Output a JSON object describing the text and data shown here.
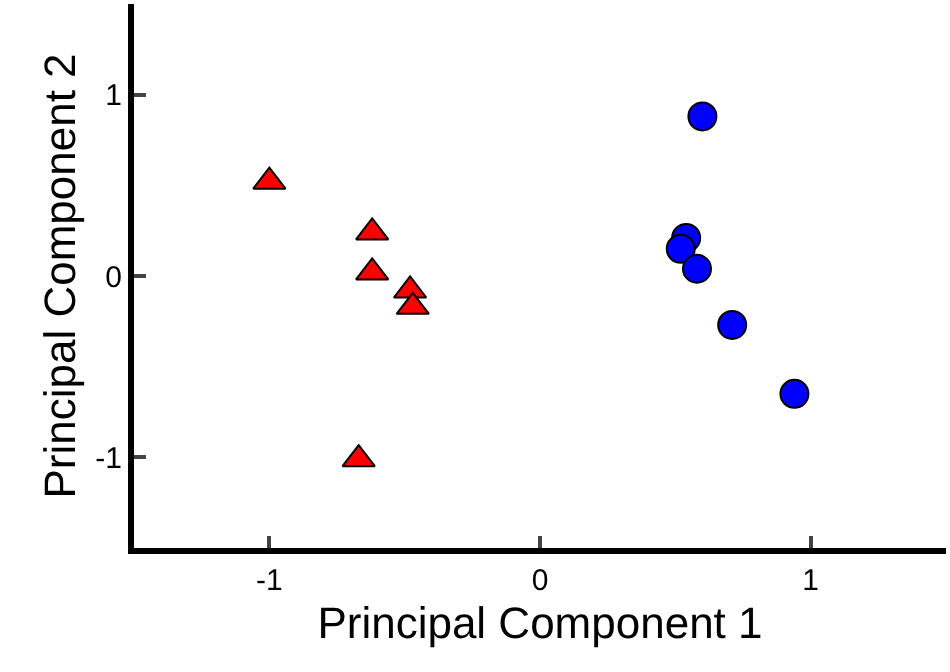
{
  "chart_data": {
    "type": "scatter",
    "xlabel": "Principal Component 1",
    "ylabel": "Principal Component 2",
    "xlim": [
      -1.5,
      1.5
    ],
    "xticks": [
      -1,
      0,
      1
    ],
    "ylim": [
      -1.5,
      1.5
    ],
    "yticks": [
      -1,
      0,
      1
    ],
    "series": [
      {
        "color": "#ff0000",
        "marker": "triangle",
        "x": [
          -1.0,
          -0.62,
          -0.62,
          -0.48,
          -0.47,
          -0.67
        ],
        "values": [
          0.52,
          0.24,
          0.02,
          -0.08,
          -0.17,
          -1.01
        ]
      },
      {
        "color": "#0000ff",
        "marker": "circle",
        "x": [
          0.6,
          0.54,
          0.52,
          0.58,
          0.71,
          0.94
        ],
        "values": [
          0.88,
          0.21,
          0.15,
          0.04,
          -0.27,
          -0.65
        ]
      }
    ]
  }
}
